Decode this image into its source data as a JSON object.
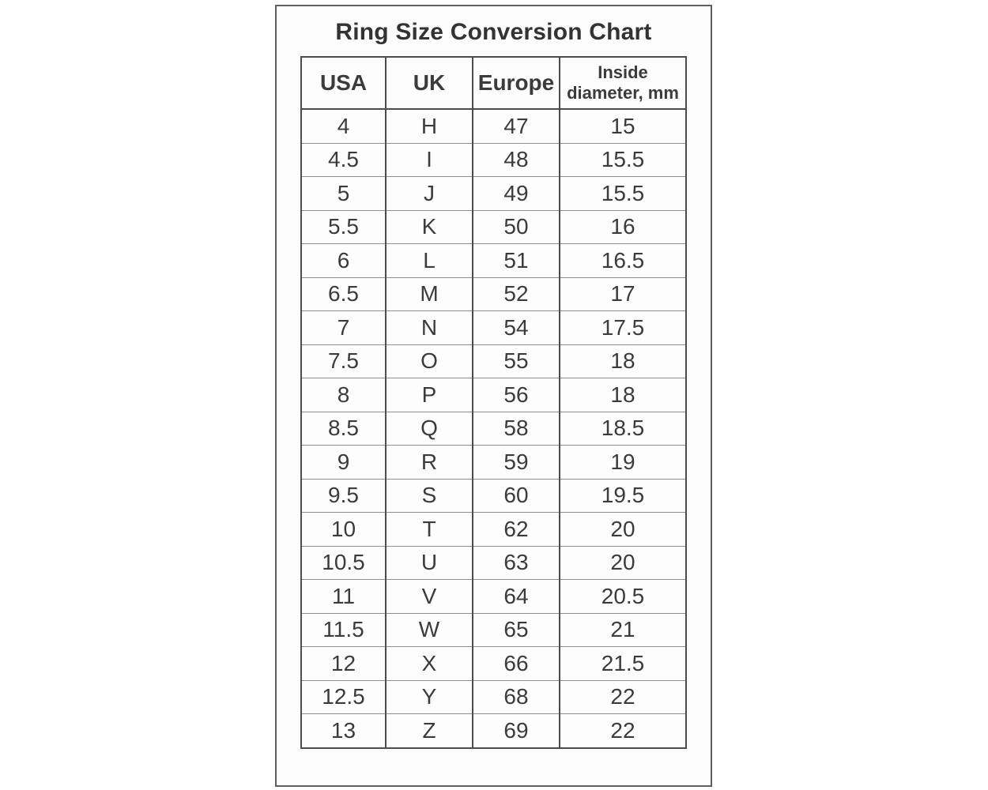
{
  "chart_data": {
    "type": "table",
    "title": "Ring Size Conversion Chart",
    "columns": [
      "USA",
      "UK",
      "Europe",
      "Inside diameter, mm"
    ],
    "rows": [
      [
        4,
        "H",
        47,
        15
      ],
      [
        4.5,
        "I",
        48,
        15.5
      ],
      [
        5,
        "J",
        49,
        15.5
      ],
      [
        5.5,
        "K",
        50,
        16
      ],
      [
        6,
        "L",
        51,
        16.5
      ],
      [
        6.5,
        "M",
        52,
        17
      ],
      [
        7,
        "N",
        54,
        17.5
      ],
      [
        7.5,
        "O",
        55,
        18
      ],
      [
        8,
        "P",
        56,
        18
      ],
      [
        8.5,
        "Q",
        58,
        18.5
      ],
      [
        9,
        "R",
        59,
        19
      ],
      [
        9.5,
        "S",
        60,
        19.5
      ],
      [
        10,
        "T",
        62,
        20
      ],
      [
        10.5,
        "U",
        63,
        20
      ],
      [
        11,
        "V",
        64,
        20.5
      ],
      [
        11.5,
        "W",
        65,
        21
      ],
      [
        12,
        "X",
        66,
        21.5
      ],
      [
        12.5,
        "Y",
        68,
        22
      ],
      [
        13,
        "Z",
        69,
        22
      ]
    ],
    "layout": {
      "header_bold": true,
      "grid": "on",
      "text_color": "#3b3b3b",
      "border_color": "#4c4c4c",
      "row_line_color": "#8f8f8f",
      "background": "#fcfcfc"
    }
  },
  "header4": {
    "line1": "Inside",
    "line2": "diameter, mm"
  }
}
